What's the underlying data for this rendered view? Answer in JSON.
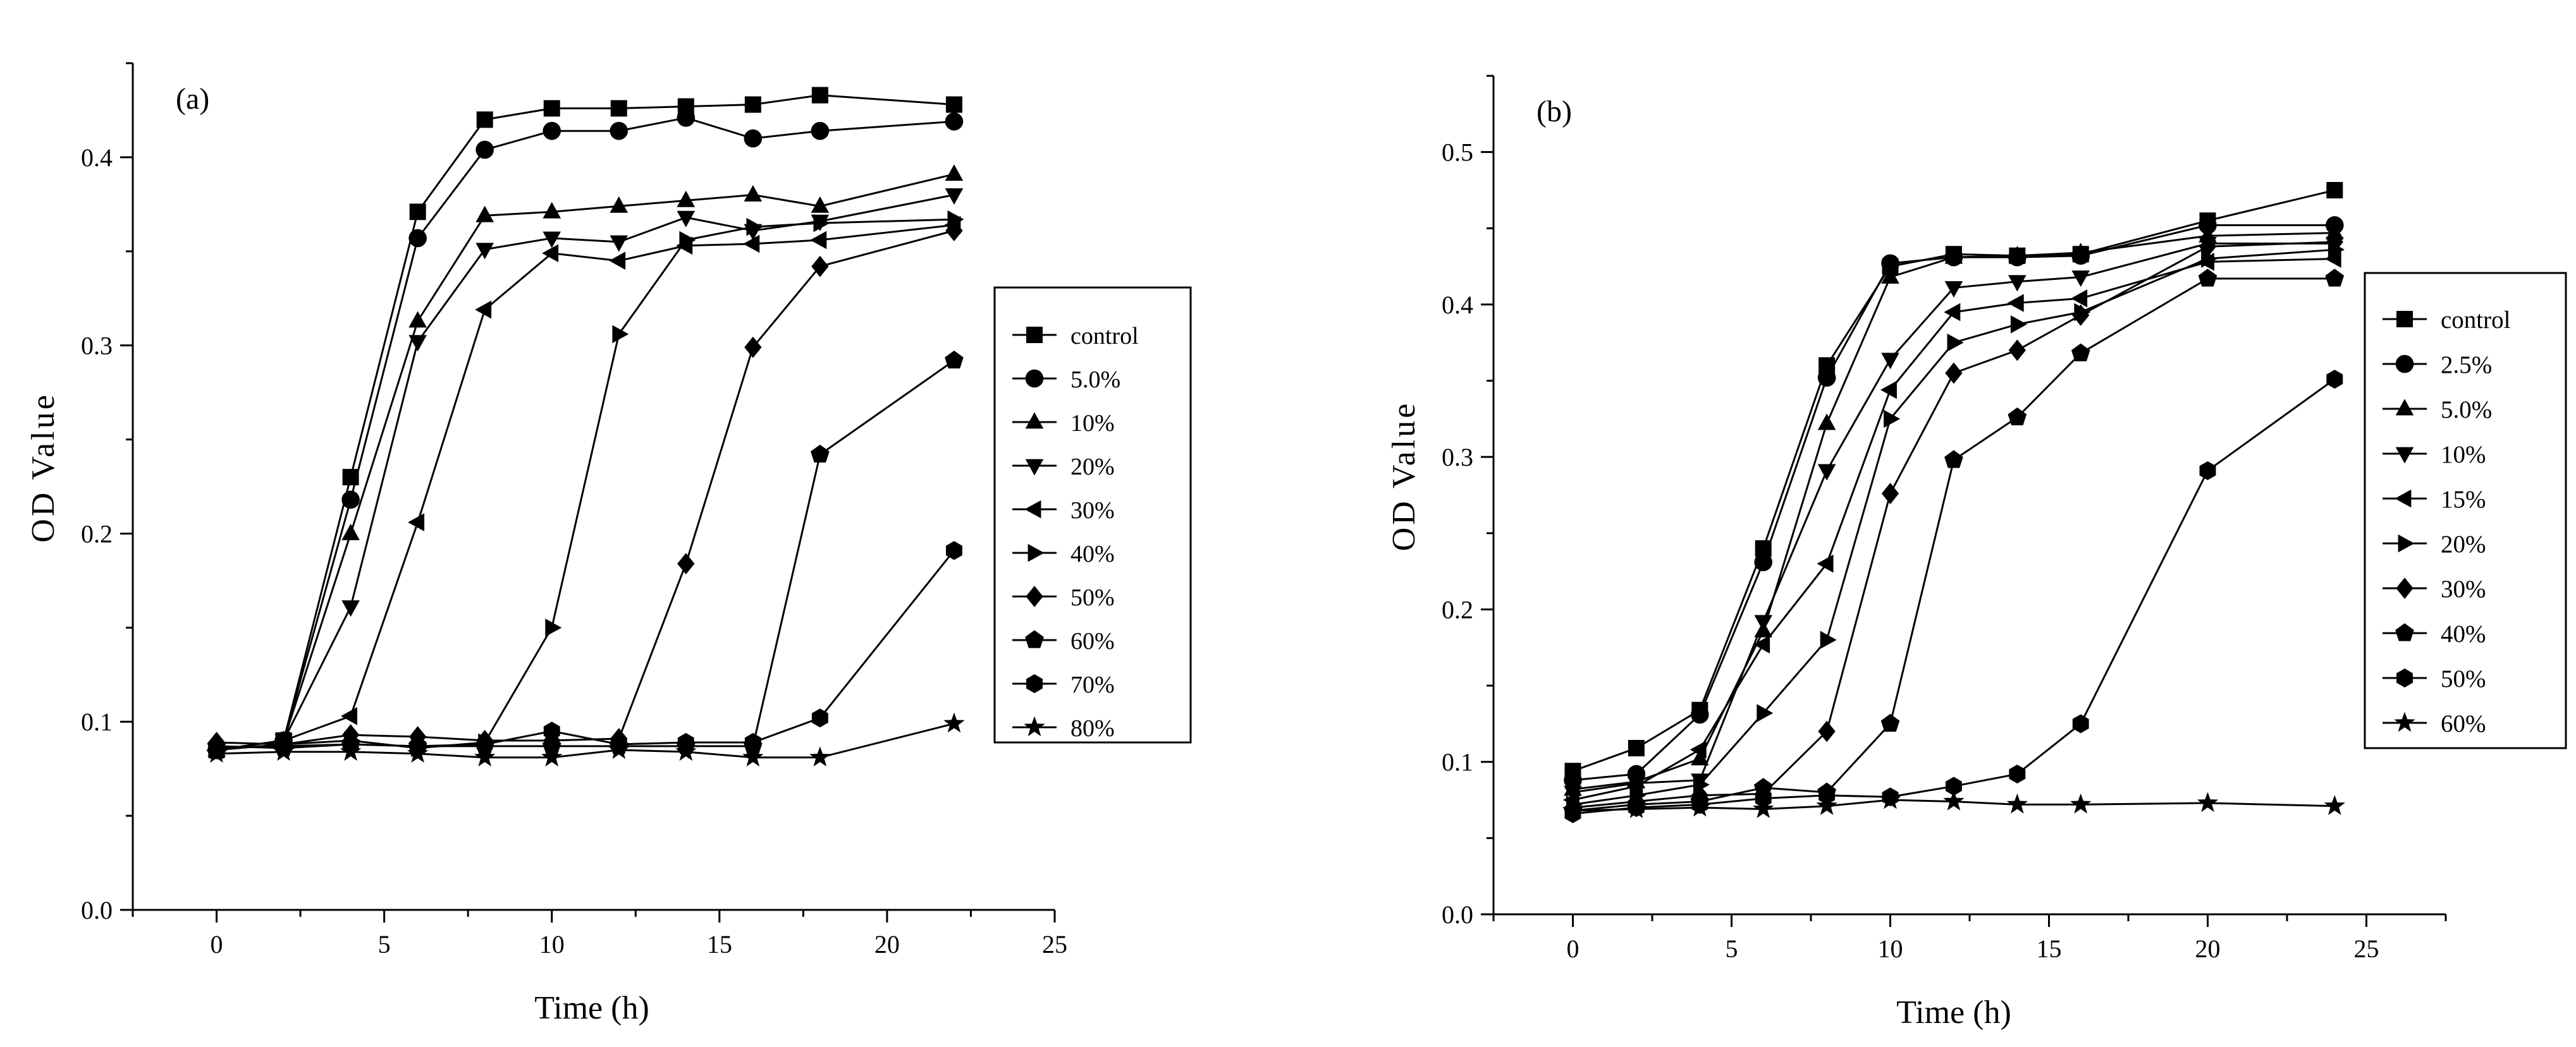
{
  "chart_data": [
    {
      "type": "line",
      "panel_label": "(a)",
      "xlabel": "Time (h)",
      "ylabel": "OD Value",
      "xlim": [
        -2.5,
        25
      ],
      "ylim": [
        0.0,
        0.45
      ],
      "xticks": [
        0,
        5,
        10,
        15,
        20,
        25
      ],
      "xtick_labels": [
        "0",
        "5",
        "10",
        "15",
        "20",
        "25"
      ],
      "yticks": [
        0.0,
        0.1,
        0.2,
        0.3,
        0.4
      ],
      "ytick_labels": [
        "0.0",
        "0.1",
        "0.2",
        "0.3",
        "0.4"
      ],
      "legend_position": "right",
      "series": [
        {
          "name": "control",
          "marker": "square",
          "x": [
            0,
            2,
            4,
            6,
            8,
            10,
            12,
            14,
            16,
            18,
            22
          ],
          "values": [
            0.085,
            0.09,
            0.23,
            0.371,
            0.42,
            0.426,
            0.426,
            0.427,
            0.428,
            0.433,
            0.428
          ]
        },
        {
          "name": "5.0%",
          "marker": "circle",
          "x": [
            0,
            2,
            4,
            6,
            8,
            10,
            12,
            14,
            16,
            18,
            22
          ],
          "values": [
            0.085,
            0.09,
            0.218,
            0.357,
            0.404,
            0.414,
            0.414,
            0.421,
            0.41,
            0.414,
            0.419
          ]
        },
        {
          "name": "10%",
          "marker": "triangle-up",
          "x": [
            0,
            2,
            4,
            6,
            8,
            10,
            12,
            14,
            16,
            18,
            22
          ],
          "values": [
            0.085,
            0.09,
            0.2,
            0.313,
            0.369,
            0.371,
            0.374,
            0.377,
            0.38,
            0.374,
            0.391
          ]
        },
        {
          "name": "20%",
          "marker": "triangle-down",
          "x": [
            0,
            2,
            4,
            6,
            8,
            10,
            12,
            14,
            16,
            18,
            22
          ],
          "values": [
            0.085,
            0.09,
            0.161,
            0.302,
            0.351,
            0.357,
            0.355,
            0.368,
            0.361,
            0.366,
            0.38
          ]
        },
        {
          "name": "30%",
          "marker": "triangle-left",
          "x": [
            0,
            2,
            4,
            6,
            8,
            10,
            12,
            14,
            16,
            18,
            22
          ],
          "values": [
            0.085,
            0.09,
            0.103,
            0.206,
            0.319,
            0.349,
            0.345,
            0.353,
            0.354,
            0.356,
            0.364
          ]
        },
        {
          "name": "40%",
          "marker": "triangle-right",
          "x": [
            0,
            2,
            4,
            6,
            8,
            10,
            12,
            14,
            16,
            18,
            22
          ],
          "values": [
            0.085,
            0.088,
            0.09,
            0.086,
            0.089,
            0.15,
            0.306,
            0.356,
            0.363,
            0.365,
            0.367
          ]
        },
        {
          "name": "50%",
          "marker": "diamond",
          "x": [
            0,
            2,
            4,
            6,
            8,
            10,
            12,
            14,
            16,
            18,
            22
          ],
          "values": [
            0.089,
            0.088,
            0.093,
            0.092,
            0.09,
            0.09,
            0.091,
            0.184,
            0.299,
            0.342,
            0.361
          ]
        },
        {
          "name": "60%",
          "marker": "pentagon",
          "x": [
            0,
            2,
            4,
            6,
            8,
            10,
            12,
            14,
            16,
            18,
            22
          ],
          "values": [
            0.087,
            0.086,
            0.088,
            0.087,
            0.087,
            0.087,
            0.087,
            0.087,
            0.087,
            0.242,
            0.292
          ]
        },
        {
          "name": "70%",
          "marker": "hexagon",
          "x": [
            0,
            2,
            4,
            6,
            8,
            10,
            12,
            14,
            16,
            18,
            22
          ],
          "values": [
            0.086,
            0.087,
            0.088,
            0.087,
            0.088,
            0.095,
            0.088,
            0.089,
            0.089,
            0.102,
            0.191
          ]
        },
        {
          "name": "80%",
          "marker": "star",
          "x": [
            0,
            2,
            4,
            6,
            8,
            10,
            12,
            14,
            16,
            18,
            22
          ],
          "values": [
            0.083,
            0.084,
            0.084,
            0.083,
            0.081,
            0.081,
            0.085,
            0.084,
            0.081,
            0.081,
            0.099
          ]
        }
      ]
    },
    {
      "type": "line",
      "panel_label": "(b)",
      "xlabel": "Time (h)",
      "ylabel": "OD Value",
      "xlim": [
        -2.5,
        27.5
      ],
      "ylim": [
        0.0,
        0.55
      ],
      "xticks": [
        0,
        5,
        10,
        15,
        20,
        25
      ],
      "xtick_labels": [
        "0",
        "5",
        "10",
        "15",
        "20",
        "25"
      ],
      "yticks": [
        0.0,
        0.1,
        0.2,
        0.3,
        0.4,
        0.5
      ],
      "ytick_labels": [
        "0.0",
        "0.1",
        "0.2",
        "0.3",
        "0.4",
        "0.5"
      ],
      "legend_position": "right",
      "series": [
        {
          "name": "control",
          "marker": "square",
          "x": [
            0,
            2,
            4,
            6,
            8,
            10,
            12,
            14,
            16,
            20,
            24
          ],
          "values": [
            0.094,
            0.109,
            0.134,
            0.24,
            0.36,
            0.425,
            0.433,
            0.432,
            0.433,
            0.455,
            0.475
          ]
        },
        {
          "name": "2.5%",
          "marker": "circle",
          "x": [
            0,
            2,
            4,
            6,
            8,
            10,
            12,
            14,
            16,
            20,
            24
          ],
          "values": [
            0.088,
            0.092,
            0.131,
            0.231,
            0.352,
            0.427,
            0.431,
            0.431,
            0.432,
            0.452,
            0.452
          ]
        },
        {
          "name": "5.0%",
          "marker": "triangle-up",
          "x": [
            0,
            2,
            4,
            6,
            8,
            10,
            12,
            14,
            16,
            20,
            24
          ],
          "values": [
            0.082,
            0.087,
            0.102,
            0.186,
            0.322,
            0.418,
            0.431,
            0.432,
            0.434,
            0.445,
            0.447
          ]
        },
        {
          "name": "10%",
          "marker": "triangle-down",
          "x": [
            0,
            2,
            4,
            6,
            8,
            10,
            12,
            14,
            16,
            20,
            24
          ],
          "values": [
            0.08,
            0.086,
            0.088,
            0.192,
            0.291,
            0.364,
            0.411,
            0.415,
            0.418,
            0.44,
            0.44
          ]
        },
        {
          "name": "15%",
          "marker": "triangle-left",
          "x": [
            0,
            2,
            4,
            6,
            8,
            10,
            12,
            14,
            16,
            20,
            24
          ],
          "values": [
            0.075,
            0.084,
            0.108,
            0.177,
            0.23,
            0.344,
            0.395,
            0.401,
            0.404,
            0.428,
            0.43
          ]
        },
        {
          "name": "20%",
          "marker": "triangle-right",
          "x": [
            0,
            2,
            4,
            6,
            8,
            10,
            12,
            14,
            16,
            20,
            24
          ],
          "values": [
            0.072,
            0.078,
            0.085,
            0.132,
            0.18,
            0.325,
            0.375,
            0.387,
            0.395,
            0.43,
            0.436
          ]
        },
        {
          "name": "30%",
          "marker": "diamond",
          "x": [
            0,
            2,
            4,
            6,
            8,
            10,
            12,
            14,
            16,
            20,
            24
          ],
          "values": [
            0.07,
            0.074,
            0.078,
            0.079,
            0.12,
            0.276,
            0.355,
            0.37,
            0.393,
            0.438,
            0.441
          ]
        },
        {
          "name": "40%",
          "marker": "pentagon",
          "x": [
            0,
            2,
            4,
            6,
            8,
            10,
            12,
            14,
            16,
            20,
            24
          ],
          "values": [
            0.068,
            0.072,
            0.074,
            0.083,
            0.08,
            0.125,
            0.298,
            0.326,
            0.368,
            0.417,
            0.417
          ]
        },
        {
          "name": "50%",
          "marker": "hexagon",
          "x": [
            0,
            2,
            4,
            6,
            8,
            10,
            12,
            14,
            16,
            20,
            24
          ],
          "values": [
            0.066,
            0.07,
            0.072,
            0.076,
            0.078,
            0.077,
            0.084,
            0.092,
            0.125,
            0.291,
            0.351
          ]
        },
        {
          "name": "60%",
          "marker": "star",
          "x": [
            0,
            2,
            4,
            6,
            8,
            10,
            12,
            14,
            16,
            20,
            24
          ],
          "values": [
            0.068,
            0.069,
            0.07,
            0.069,
            0.071,
            0.075,
            0.074,
            0.072,
            0.072,
            0.073,
            0.071
          ]
        }
      ]
    }
  ]
}
